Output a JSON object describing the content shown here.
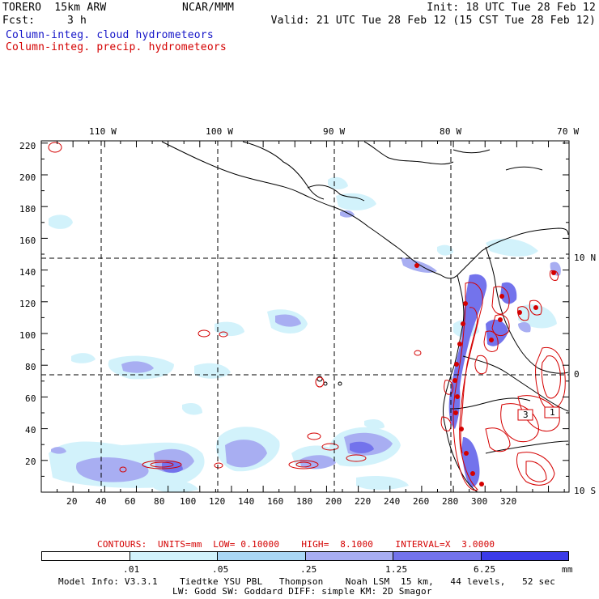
{
  "header": {
    "model": "TORERO  15km ARW",
    "center": "NCAR/MMM",
    "fcst_label": "Fcst:",
    "fcst_value": "3 h",
    "init": "Init: 18 UTC Tue 28 Feb 12",
    "valid": "Valid: 21 UTC Tue 28 Feb 12 (15 CST Tue 28 Feb 12)",
    "legend_cloud": "Column-integ. cloud hydrometeors",
    "legend_precip": "Column-integ. precip. hydrometeors"
  },
  "map": {
    "lon_labels": [
      "110 W",
      "100 W",
      "90 W",
      "80 W",
      "70 W"
    ],
    "lat_labels": [
      "10 N",
      "0",
      "10 S"
    ],
    "y_ticks": [
      "220",
      "200",
      "180",
      "160",
      "140",
      "120",
      "100",
      "80",
      "60",
      "40",
      "20"
    ],
    "x_ticks": [
      "20",
      "40",
      "60",
      "80",
      "100",
      "120",
      "140",
      "160",
      "180",
      "200",
      "220",
      "240",
      "260",
      "280",
      "300",
      "320"
    ],
    "contour_labels": [
      "3",
      "1"
    ]
  },
  "contours_info": {
    "text": "CONTOURS:  UNITS=mm  LOW= 0.10000    HIGH=  8.1000    INTERVAL=X  3.0000"
  },
  "colorbar": {
    "tick_labels": [
      ".01",
      ".05",
      ".25",
      "1.25",
      "6.25"
    ],
    "units": "mm",
    "colors": [
      "#ffffff",
      "#d2f2fb",
      "#aad7f5",
      "#a8aef2",
      "#7373ec",
      "#3b3be8",
      "#1414e2"
    ]
  },
  "footer": {
    "line1": "Model Info: V3.3.1    Tiedtke YSU PBL   Thompson    Noah LSM  15 km,   44 levels,   52 sec",
    "line2": "LW: Godd SW: Goddard DIFF: simple KM: 2D Smagor"
  }
}
